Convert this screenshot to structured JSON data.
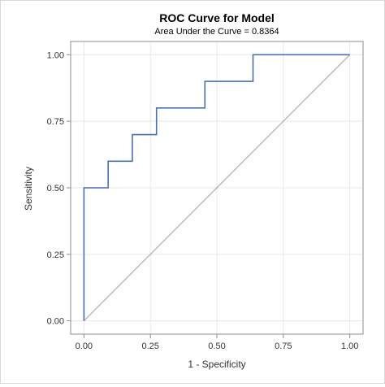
{
  "chart_data": {
    "type": "line",
    "title": "ROC Curve for Model",
    "subtitle": "Area Under the Curve = 0.8364",
    "xlabel": "1 - Specificity",
    "ylabel": "Sensitivity",
    "xlim": [
      -0.05,
      1.05
    ],
    "ylim": [
      -0.05,
      1.05
    ],
    "xticks": [
      "0.00",
      "0.25",
      "0.50",
      "0.75",
      "1.00"
    ],
    "yticks": [
      "0.00",
      "0.25",
      "0.50",
      "0.75",
      "1.00"
    ],
    "grid": true,
    "colors": {
      "roc": "#4a6fb5",
      "reference": "#a0a0a0",
      "grid": "#e8e8e8",
      "axis": "#8c8c8c"
    },
    "series": [
      {
        "values": [
          [
            0.0,
            0.0
          ],
          [
            0.0,
            0.5
          ],
          [
            0.091,
            0.5
          ],
          [
            0.091,
            0.6
          ],
          [
            0.182,
            0.6
          ],
          [
            0.182,
            0.7
          ],
          [
            0.273,
            0.7
          ],
          [
            0.273,
            0.8
          ],
          [
            0.455,
            0.8
          ],
          [
            0.455,
            0.9
          ],
          [
            0.636,
            0.9
          ],
          [
            0.636,
            1.0
          ],
          [
            1.0,
            1.0
          ]
        ]
      }
    ],
    "reference_line": [
      [
        0,
        0
      ],
      [
        1,
        1
      ]
    ]
  }
}
